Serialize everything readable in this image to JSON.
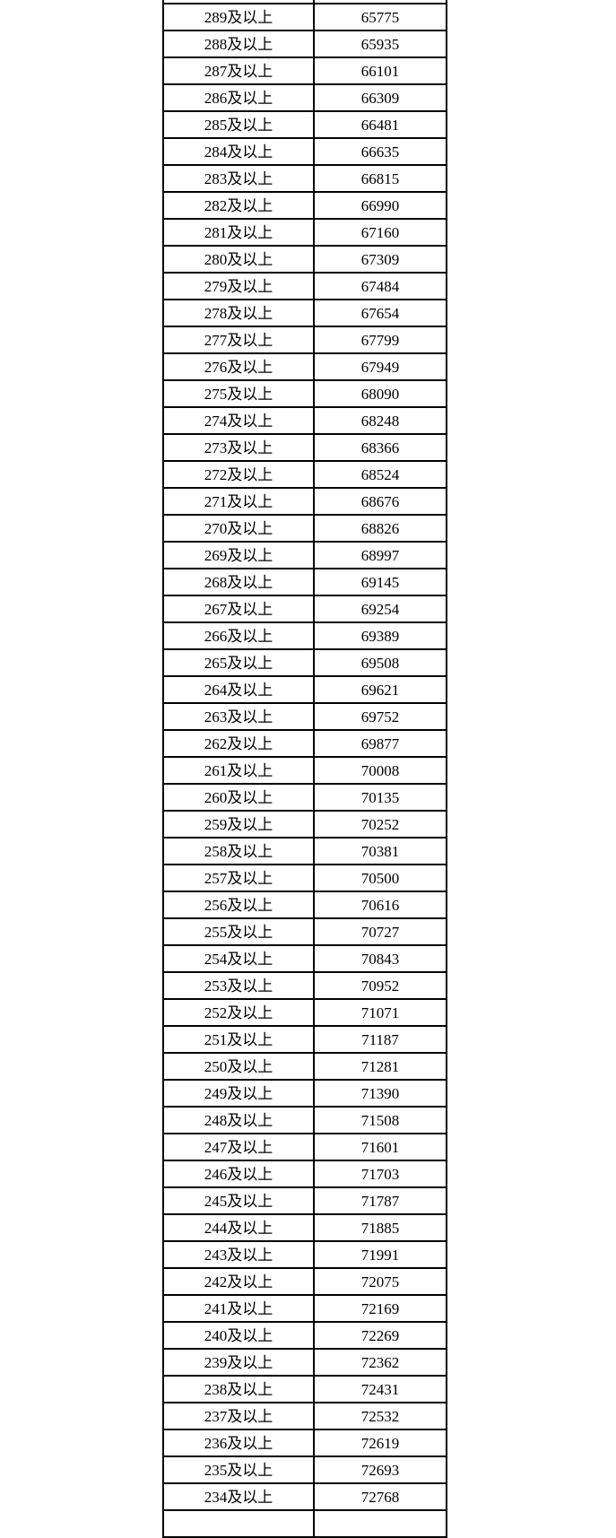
{
  "page": {
    "background_color": "#ffffff",
    "border_color": "#000000",
    "text_color": "#000000"
  },
  "table": {
    "description": "score-threshold to cumulative-count table, clipped at top and bottom of viewport",
    "label_suffix": "及以上",
    "rows": [
      [
        "289及以上",
        "65775"
      ],
      [
        "288及以上",
        "65935"
      ],
      [
        "287及以上",
        "66101"
      ],
      [
        "286及以上",
        "66309"
      ],
      [
        "285及以上",
        "66481"
      ],
      [
        "284及以上",
        "66635"
      ],
      [
        "283及以上",
        "66815"
      ],
      [
        "282及以上",
        "66990"
      ],
      [
        "281及以上",
        "67160"
      ],
      [
        "280及以上",
        "67309"
      ],
      [
        "279及以上",
        "67484"
      ],
      [
        "278及以上",
        "67654"
      ],
      [
        "277及以上",
        "67799"
      ],
      [
        "276及以上",
        "67949"
      ],
      [
        "275及以上",
        "68090"
      ],
      [
        "274及以上",
        "68248"
      ],
      [
        "273及以上",
        "68366"
      ],
      [
        "272及以上",
        "68524"
      ],
      [
        "271及以上",
        "68676"
      ],
      [
        "270及以上",
        "68826"
      ],
      [
        "269及以上",
        "68997"
      ],
      [
        "268及以上",
        "69145"
      ],
      [
        "267及以上",
        "69254"
      ],
      [
        "266及以上",
        "69389"
      ],
      [
        "265及以上",
        "69508"
      ],
      [
        "264及以上",
        "69621"
      ],
      [
        "263及以上",
        "69752"
      ],
      [
        "262及以上",
        "69877"
      ],
      [
        "261及以上",
        "70008"
      ],
      [
        "260及以上",
        "70135"
      ],
      [
        "259及以上",
        "70252"
      ],
      [
        "258及以上",
        "70381"
      ],
      [
        "257及以上",
        "70500"
      ],
      [
        "256及以上",
        "70616"
      ],
      [
        "255及以上",
        "70727"
      ],
      [
        "254及以上",
        "70843"
      ],
      [
        "253及以上",
        "70952"
      ],
      [
        "252及以上",
        "71071"
      ],
      [
        "251及以上",
        "71187"
      ],
      [
        "250及以上",
        "71281"
      ],
      [
        "249及以上",
        "71390"
      ],
      [
        "248及以上",
        "71508"
      ],
      [
        "247及以上",
        "71601"
      ],
      [
        "246及以上",
        "71703"
      ],
      [
        "245及以上",
        "71787"
      ],
      [
        "244及以上",
        "71885"
      ],
      [
        "243及以上",
        "71991"
      ],
      [
        "242及以上",
        "72075"
      ],
      [
        "241及以上",
        "72169"
      ],
      [
        "240及以上",
        "72269"
      ],
      [
        "239及以上",
        "72362"
      ],
      [
        "238及以上",
        "72431"
      ],
      [
        "237及以上",
        "72532"
      ],
      [
        "236及以上",
        "72619"
      ],
      [
        "235及以上",
        "72693"
      ],
      [
        "234及以上",
        "72768"
      ]
    ],
    "partial_top_row_text": "",
    "partial_bottom_row_text": ""
  }
}
